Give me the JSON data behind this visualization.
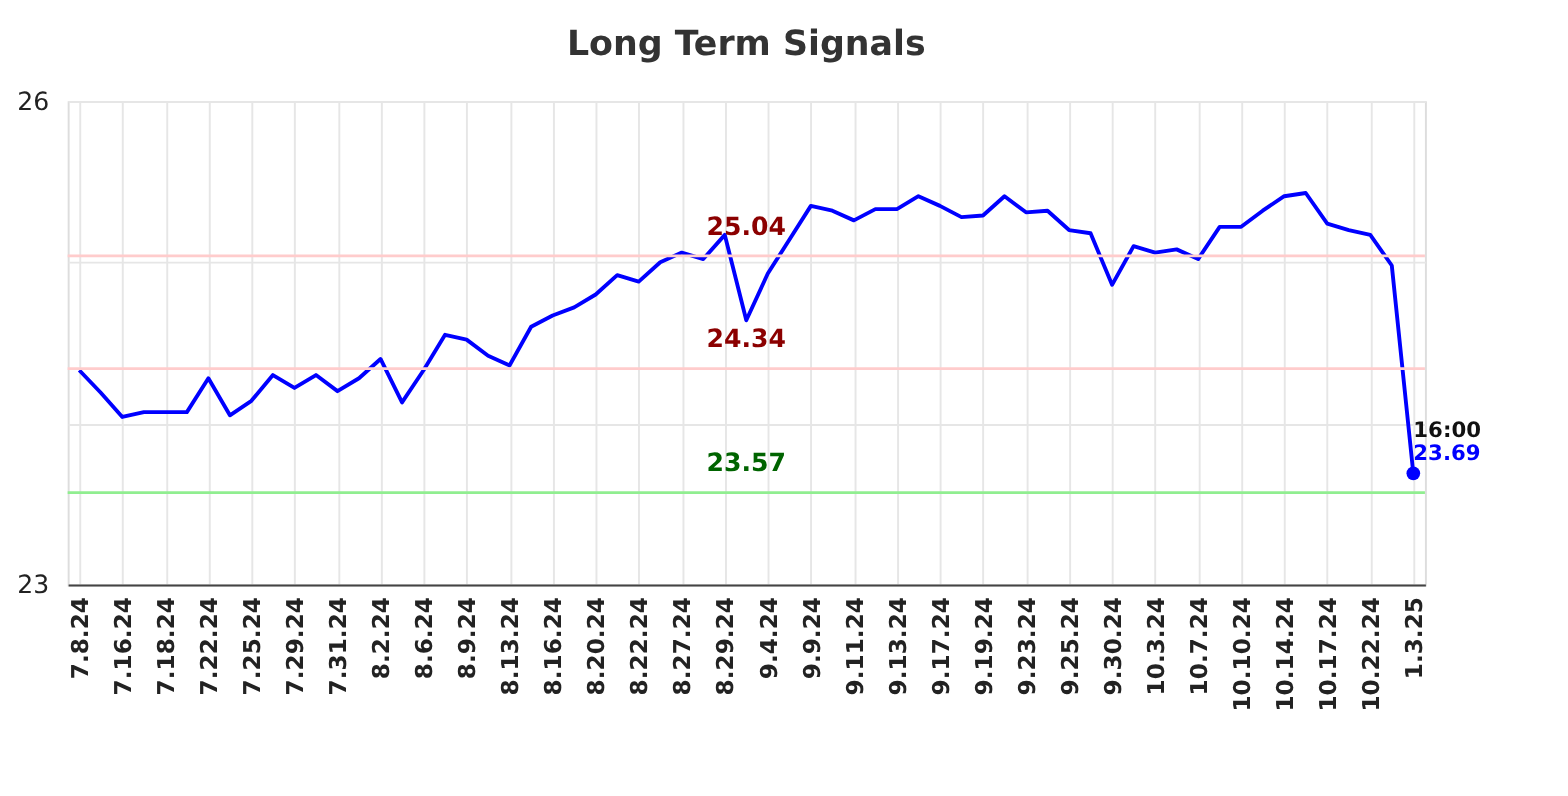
{
  "chart_data": {
    "type": "line",
    "title": "Long Term Signals",
    "categories": [
      "7.8.24",
      null,
      "7.16.24",
      null,
      "7.18.24",
      null,
      "7.22.24",
      null,
      "7.25.24",
      null,
      "7.29.24",
      null,
      "7.31.24",
      null,
      "8.2.24",
      null,
      "8.6.24",
      null,
      "8.9.24",
      null,
      "8.13.24",
      null,
      "8.16.24",
      null,
      "8.20.24",
      null,
      "8.22.24",
      null,
      "8.27.24",
      null,
      "8.29.24",
      null,
      "9.4.24",
      null,
      "9.9.24",
      null,
      "9.11.24",
      null,
      "9.13.24",
      null,
      "9.17.24",
      null,
      "9.19.24",
      null,
      "9.23.24",
      null,
      "9.25.24",
      null,
      "9.30.24",
      null,
      "10.3.24",
      null,
      "10.7.24",
      null,
      "10.10.24",
      null,
      "10.14.24",
      null,
      "10.17.24",
      null,
      "10.22.24",
      null,
      "1.3.25"
    ],
    "series": [
      {
        "color": "#0000ff",
        "marker": "none",
        "values": [
          24.33,
          24.19,
          24.04,
          24.07,
          24.07,
          24.07,
          24.28,
          24.05,
          24.14,
          24.3,
          24.22,
          24.3,
          24.2,
          24.28,
          24.4,
          24.13,
          24.33,
          24.55,
          24.52,
          24.42,
          24.36,
          24.6,
          24.67,
          24.72,
          24.8,
          24.92,
          24.88,
          25.0,
          25.06,
          25.02,
          25.17,
          24.64,
          24.93,
          25.14,
          25.35,
          25.32,
          25.26,
          25.33,
          25.33,
          25.41,
          25.35,
          25.28,
          25.29,
          25.41,
          25.31,
          25.32,
          25.2,
          25.18,
          24.86,
          25.1,
          25.06,
          25.08,
          25.02,
          25.22,
          25.22,
          25.32,
          25.41,
          25.43,
          25.24,
          25.2,
          25.17,
          24.98,
          23.69
        ]
      },
      {
        "type": "scatter",
        "color": "#0000ff",
        "marker": "circle",
        "x": [
          "1.3.25"
        ],
        "values": [
          23.69
        ]
      }
    ],
    "ylim": [
      23,
      26
    ],
    "yticks": [
      23,
      {
        "value": 24,
        "label": null
      },
      {
        "value": 25,
        "label": null
      },
      26
    ],
    "grid": true,
    "legend": false,
    "ref_lines": [
      {
        "axis": "y",
        "value": 25.04,
        "label": "25.04",
        "color": "#ffcccc"
      },
      {
        "axis": "y",
        "value": 24.34,
        "label": "24.34",
        "color": "#ffcccc"
      },
      {
        "axis": "y",
        "value": 23.57,
        "label": "23.57",
        "color": "#90ee90"
      }
    ],
    "annotations": [
      {
        "text": "16:00",
        "x": "1.3.25",
        "y": 23.69
      },
      {
        "text": "23.69",
        "x": "1.3.25",
        "y": 23.69
      }
    ]
  }
}
